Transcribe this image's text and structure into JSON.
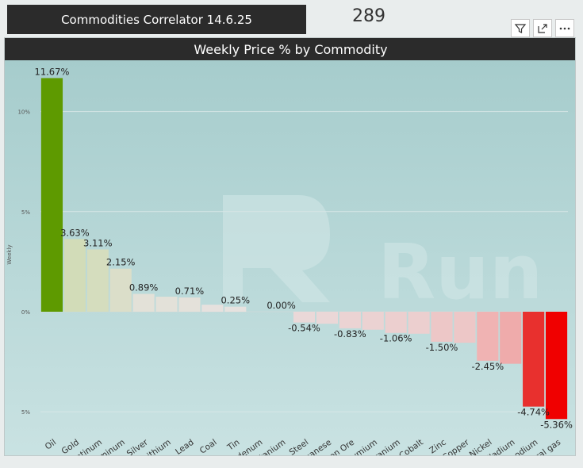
{
  "report": {
    "title": "Commodities Correlator 14.6.25",
    "count": "289"
  },
  "toolbar": {
    "filter_icon": "filter-icon",
    "focus_icon": "focus-mode-icon",
    "more_icon": "more-options-icon"
  },
  "watermark": {
    "text": "Run"
  },
  "chart_data": {
    "type": "bar",
    "title": "Weekly Price %  by Commodity",
    "xlabel": "",
    "ylabel": "Weekly",
    "ylim": [
      -6.3,
      12.4
    ],
    "yticks": [
      {
        "value": 10,
        "label": "10%"
      },
      {
        "value": 5,
        "label": "5%"
      },
      {
        "value": 0,
        "label": "0%"
      },
      {
        "value": -5,
        "label": "5%"
      }
    ],
    "grid": true,
    "categories": [
      "Oil",
      "Gold",
      "Platinum",
      "Aluminum",
      "Silver",
      "Lithium",
      "Lead",
      "Coal",
      "Tin",
      "Molybdenum",
      "Titanium",
      "Steel",
      "Manganese",
      "Iron Ore",
      "Neodymium",
      "Uranium",
      "Cobalt",
      "Zinc",
      "Copper",
      "Nickel",
      "Palladium",
      "Rhodium",
      "Natural gas"
    ],
    "values": [
      11.67,
      3.63,
      3.11,
      2.15,
      0.89,
      null,
      0.71,
      null,
      0.25,
      null,
      0.0,
      -0.54,
      null,
      -0.83,
      null,
      -1.06,
      null,
      -1.5,
      null,
      -2.45,
      null,
      -4.74,
      -5.36
    ],
    "bar_heights": [
      11.67,
      3.63,
      3.11,
      2.15,
      0.89,
      0.75,
      0.71,
      0.35,
      0.25,
      0.0,
      0.0,
      -0.54,
      -0.6,
      -0.83,
      -0.9,
      -1.06,
      -1.1,
      -1.5,
      -1.55,
      -2.45,
      -2.6,
      -4.74,
      -5.36
    ],
    "data_labels": [
      "11.67%",
      "3.63%",
      "3.11%",
      "2.15%",
      "0.89%",
      "",
      "0.71%",
      "",
      "0.25%",
      "",
      "0.00%",
      "-0.54%",
      "",
      "-0.83%",
      "",
      "-1.06%",
      "",
      "-1.50%",
      "",
      "-2.45%",
      "",
      "-4.74%",
      "-5.36%"
    ],
    "colors": {
      "max": "#5e9a00",
      "positive_light": "#d2dcb8",
      "neutral": "#e8e2e2",
      "negative_light": "#f0b8b8",
      "min": "#f00000"
    }
  }
}
